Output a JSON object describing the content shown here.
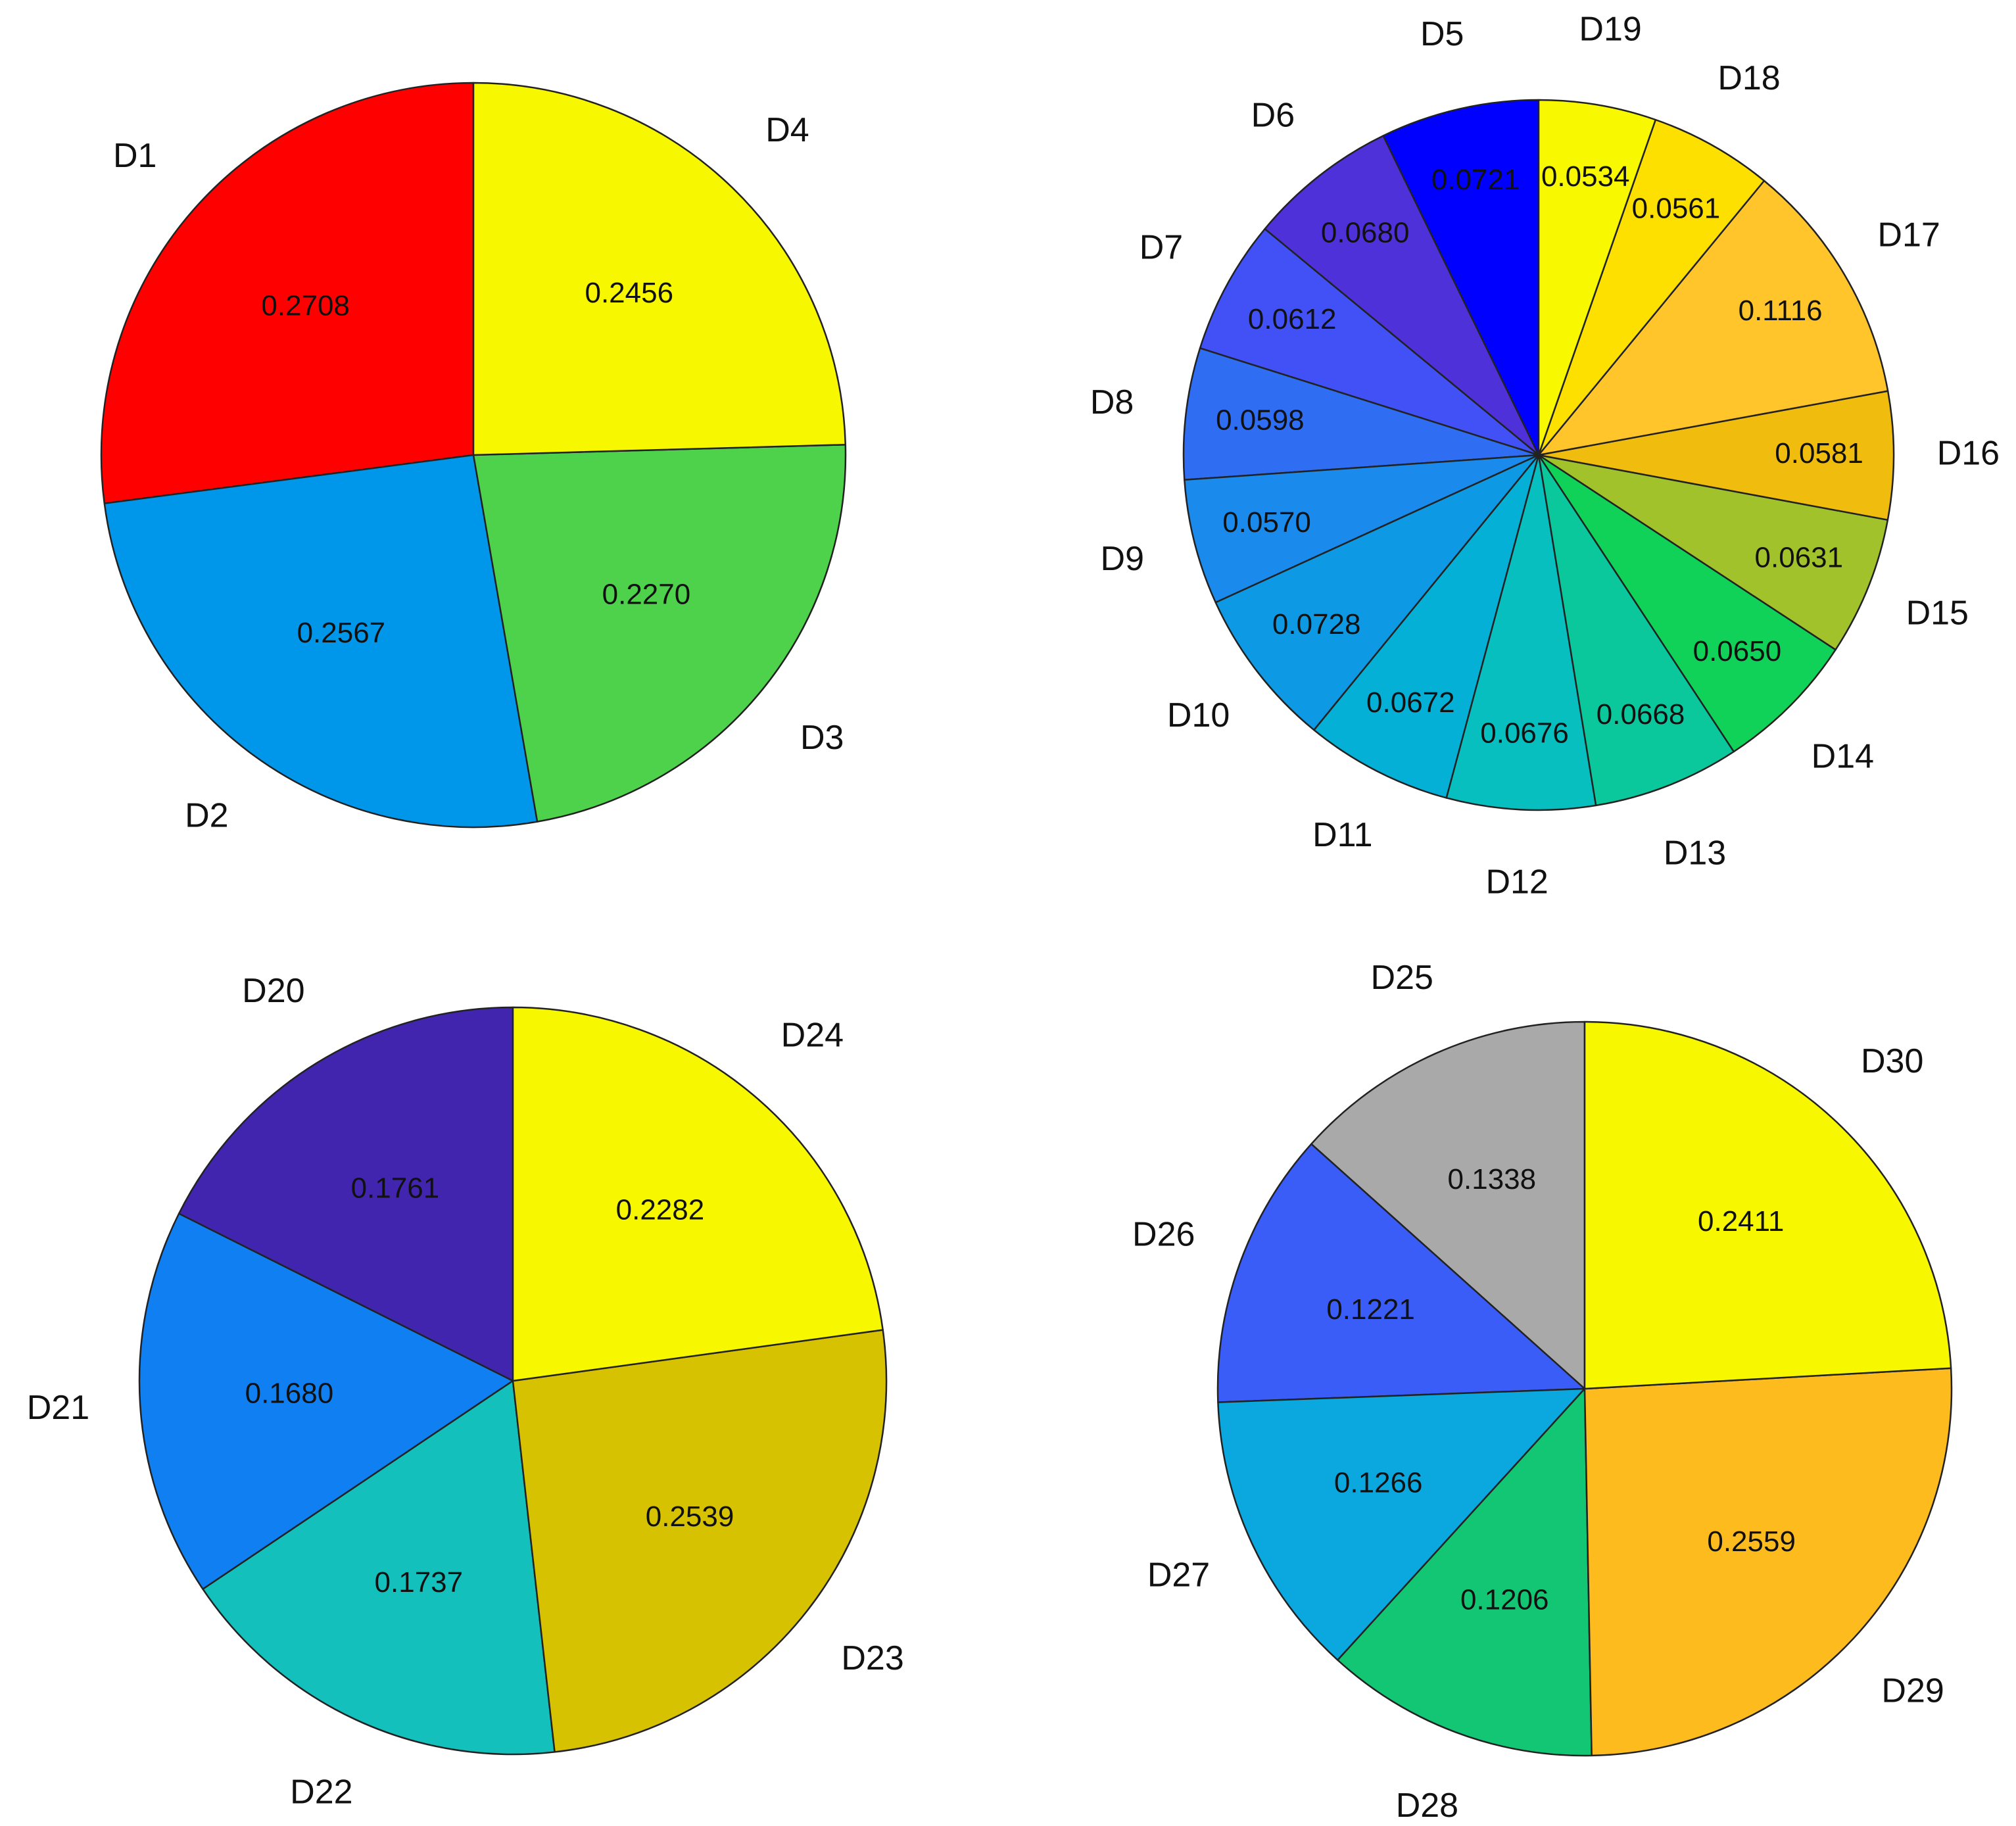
{
  "chart_data": [
    {
      "type": "pie",
      "slices": [
        {
          "name": "D1",
          "value": 0.2708,
          "color": "#ff0000"
        },
        {
          "name": "D2",
          "value": 0.2567,
          "color": "#0097eb"
        },
        {
          "name": "D3",
          "value": 0.227,
          "color": "#4fd24b"
        },
        {
          "name": "D4",
          "value": 0.2456,
          "color": "#f7f700"
        }
      ]
    },
    {
      "type": "pie",
      "slices": [
        {
          "name": "D5",
          "value": 0.0721,
          "color": "#0000ff"
        },
        {
          "name": "D6",
          "value": 0.068,
          "color": "#4f31d9"
        },
        {
          "name": "D7",
          "value": 0.0612,
          "color": "#4151f5"
        },
        {
          "name": "D8",
          "value": 0.0598,
          "color": "#2f6df2"
        },
        {
          "name": "D9",
          "value": 0.057,
          "color": "#1a8aec"
        },
        {
          "name": "D10",
          "value": 0.0728,
          "color": "#0d99e3"
        },
        {
          "name": "D11",
          "value": 0.0672,
          "color": "#05b0d6"
        },
        {
          "name": "D12",
          "value": 0.0676,
          "color": "#08bfbf"
        },
        {
          "name": "D13",
          "value": 0.0668,
          "color": "#0ac89b"
        },
        {
          "name": "D14",
          "value": 0.065,
          "color": "#10d258"
        },
        {
          "name": "D15",
          "value": 0.0631,
          "color": "#a2c22c"
        },
        {
          "name": "D16",
          "value": 0.0581,
          "color": "#f0bd0e"
        },
        {
          "name": "D17",
          "value": 0.1116,
          "color": "#ffc52a"
        },
        {
          "name": "D18",
          "value": 0.0561,
          "color": "#fde000"
        },
        {
          "name": "D19",
          "value": 0.0534,
          "color": "#f8f800"
        }
      ]
    },
    {
      "type": "pie",
      "slices": [
        {
          "name": "D20",
          "value": 0.1761,
          "color": "#4125ae"
        },
        {
          "name": "D21",
          "value": 0.168,
          "color": "#0f7ff2"
        },
        {
          "name": "D22",
          "value": 0.1737,
          "color": "#14c0bc"
        },
        {
          "name": "D23",
          "value": 0.2539,
          "color": "#d6c200"
        },
        {
          "name": "D24",
          "value": 0.2282,
          "color": "#f7f700"
        }
      ]
    },
    {
      "type": "pie",
      "slices": [
        {
          "name": "D25",
          "value": 0.1338,
          "color": "#a9a9a9"
        },
        {
          "name": "D26",
          "value": 0.1221,
          "color": "#3a5cf7"
        },
        {
          "name": "D27",
          "value": 0.1266,
          "color": "#0ba8df"
        },
        {
          "name": "D28",
          "value": 0.1206,
          "color": "#12c673"
        },
        {
          "name": "D29",
          "value": 0.2559,
          "color": "#fdbb1e"
        },
        {
          "name": "D30",
          "value": 0.2411,
          "color": "#f7f700"
        }
      ]
    }
  ]
}
